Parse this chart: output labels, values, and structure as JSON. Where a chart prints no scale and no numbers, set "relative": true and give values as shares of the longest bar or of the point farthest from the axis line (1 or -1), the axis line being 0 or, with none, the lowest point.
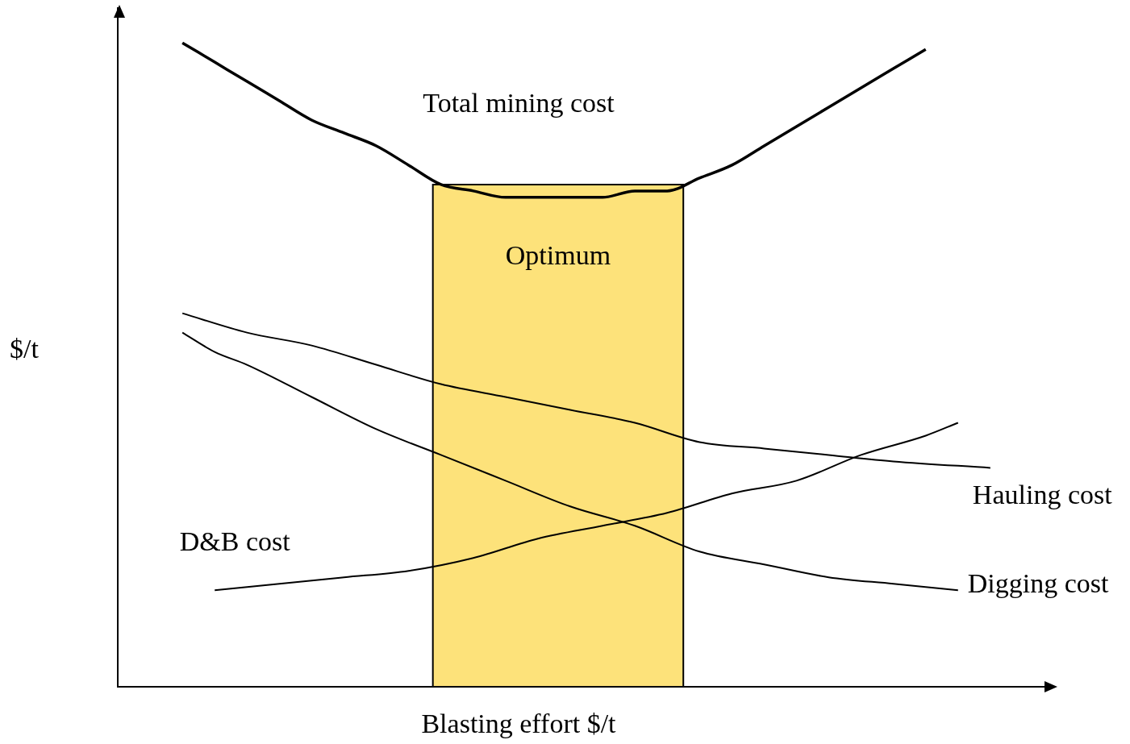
{
  "chart_data": {
    "type": "line",
    "relative": true,
    "xlabel": "Blasting effort $/t",
    "ylabel": "$/t",
    "legend": false,
    "grid": false,
    "marker": "none",
    "line_style": "solid",
    "categories": [
      null,
      null,
      null,
      null,
      null,
      null,
      null,
      null,
      null,
      null,
      null,
      null,
      null,
      null,
      null,
      null,
      null,
      null,
      null,
      null,
      null,
      null,
      null,
      null,
      null,
      null,
      null,
      null,
      null,
      null
    ],
    "series": [
      {
        "name": "Total mining cost",
        "color": "#000000",
        "values": [
          null,
          null,
          1.0,
          0.97,
          0.94,
          0.91,
          0.88,
          0.86,
          0.84,
          0.81,
          0.78,
          0.77,
          0.76,
          0.76,
          0.76,
          0.76,
          0.77,
          0.77,
          0.79,
          0.81,
          0.84,
          0.87,
          0.9,
          0.93,
          0.96,
          0.99,
          null,
          null,
          null,
          null
        ]
      },
      {
        "name": "Hauling cost",
        "color": "#000000",
        "values": [
          null,
          null,
          0.58,
          null,
          0.55,
          null,
          0.53,
          null,
          0.5,
          null,
          0.47,
          null,
          0.45,
          null,
          0.43,
          null,
          0.41,
          null,
          0.38,
          null,
          0.37,
          null,
          0.36,
          null,
          0.35,
          null,
          null,
          0.34,
          null,
          null
        ]
      },
      {
        "name": "Digging cost",
        "color": "#000000",
        "values": [
          null,
          null,
          0.55,
          0.52,
          0.5,
          null,
          0.45,
          null,
          0.4,
          null,
          0.36,
          null,
          0.32,
          null,
          0.28,
          null,
          0.25,
          null,
          0.21,
          null,
          0.19,
          null,
          0.17,
          null,
          0.16,
          null,
          0.15,
          null,
          null,
          null
        ]
      },
      {
        "name": "D&B cost",
        "color": "#000000",
        "values": [
          null,
          null,
          null,
          0.15,
          null,
          0.16,
          null,
          0.17,
          null,
          0.18,
          null,
          0.2,
          null,
          0.23,
          null,
          0.25,
          null,
          0.27,
          null,
          0.3,
          null,
          0.32,
          null,
          0.36,
          null,
          0.39,
          0.41,
          null,
          null,
          null
        ]
      }
    ],
    "annotations": [
      "Optimum"
    ]
  }
}
